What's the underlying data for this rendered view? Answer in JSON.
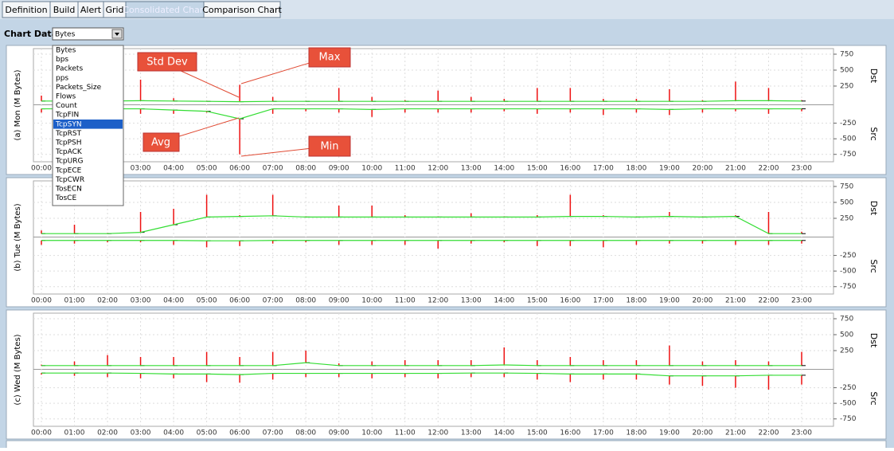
{
  "tabs": [
    "Definition",
    "Build",
    "Alert",
    "Grid",
    "Consolidated Chart",
    "Comparison Chart"
  ],
  "chart_data_label": "Chart Data:",
  "chart_data_select": "Bytes",
  "dropdown_options": [
    "Bytes",
    "bps",
    "Packets",
    "pps",
    "Packets_Size",
    "Flows",
    "Count",
    "TcpFIN",
    "TcpSYN",
    "TcpRST",
    "TcpPSH",
    "TcpACK",
    "TcpURG",
    "TcpECE",
    "TcpCWR",
    "TosECN",
    "TosCE"
  ],
  "annotations": {
    "std_dev": "Std Dev",
    "max": "Max",
    "avg": "Avg",
    "min": "Min"
  },
  "chart_data": [
    {
      "type": "errorline",
      "ylabel": "(a) Mon (M Bytes)",
      "dst_label": "Dst",
      "src_label": "Src",
      "x": [
        "00:00",
        "01:00",
        "02:00",
        "03:00",
        "04:00",
        "05:00",
        "06:00",
        "07:00",
        "08:00",
        "09:00",
        "10:00",
        "11:00",
        "12:00",
        "13:00",
        "14:00",
        "15:00",
        "16:00",
        "17:00",
        "18:00",
        "19:00",
        "20:00",
        "21:00",
        "22:00",
        "23:00"
      ],
      "ylim": [
        0,
        825
      ],
      "yticks": [
        750,
        500,
        250
      ],
      "y2lim": [
        -830,
        0
      ],
      "y2ticks": [
        -250,
        -500,
        -750
      ],
      "series": [
        {
          "name": "dst_avg",
          "color": "#33dd33",
          "values": [
            15,
            15,
            15,
            20,
            15,
            10,
            5,
            10,
            10,
            10,
            10,
            10,
            10,
            10,
            10,
            10,
            10,
            10,
            10,
            10,
            10,
            20,
            20,
            15
          ]
        },
        {
          "name": "dst_max",
          "color": "#ee1111",
          "values": [
            100,
            130,
            160,
            350,
            60,
            20,
            270,
            80,
            20,
            220,
            80,
            30,
            180,
            80,
            50,
            220,
            220,
            50,
            50,
            200,
            30,
            320,
            220,
            30
          ]
        },
        {
          "name": "src_avg",
          "color": "#33dd33",
          "axis": "y2",
          "values": [
            -20,
            -20,
            -20,
            -20,
            -40,
            -60,
            -180,
            -20,
            -20,
            -20,
            -30,
            -20,
            -20,
            -20,
            -20,
            -20,
            -20,
            -20,
            -20,
            -30,
            -20,
            -20,
            -20,
            -20
          ]
        },
        {
          "name": "src_min",
          "color": "#ee1111",
          "axis": "y2",
          "values": [
            -80,
            -120,
            -100,
            -100,
            -100,
            -80,
            -750,
            -100,
            -60,
            -80,
            -150,
            -80,
            -80,
            -80,
            -60,
            -100,
            -80,
            -120,
            -80,
            -120,
            -80,
            -60,
            -100,
            -60
          ]
        }
      ]
    },
    {
      "type": "errorline",
      "ylabel": "(b) Tue (M Bytes)",
      "dst_label": "Dst",
      "src_label": "Src",
      "x": [
        "00:00",
        "01:00",
        "02:00",
        "03:00",
        "04:00",
        "05:00",
        "06:00",
        "07:00",
        "08:00",
        "09:00",
        "10:00",
        "11:00",
        "12:00",
        "13:00",
        "14:00",
        "15:00",
        "16:00",
        "17:00",
        "18:00",
        "19:00",
        "20:00",
        "21:00",
        "22:00",
        "23:00"
      ],
      "ylim": [
        0,
        825
      ],
      "yticks": [
        750,
        500,
        250
      ],
      "y2lim": [
        -830,
        0
      ],
      "y2ticks": [
        -250,
        -500,
        -750
      ],
      "series": [
        {
          "name": "dst_avg",
          "color": "#33dd33",
          "values": [
            10,
            10,
            10,
            30,
            150,
            270,
            280,
            290,
            270,
            270,
            270,
            270,
            270,
            270,
            270,
            270,
            280,
            280,
            270,
            280,
            270,
            280,
            10,
            10
          ]
        },
        {
          "name": "dst_max",
          "color": "#ee1111",
          "values": [
            60,
            150,
            20,
            350,
            400,
            620,
            300,
            620,
            280,
            450,
            450,
            300,
            280,
            330,
            280,
            300,
            620,
            300,
            280,
            350,
            280,
            300,
            350,
            40
          ]
        },
        {
          "name": "src_avg",
          "color": "#33dd33",
          "axis": "y2",
          "values": [
            -10,
            -10,
            -10,
            -10,
            -10,
            -15,
            -15,
            -10,
            -10,
            -10,
            -10,
            -10,
            -10,
            -10,
            -10,
            -10,
            -10,
            -10,
            -10,
            -10,
            -10,
            -10,
            -10,
            -10
          ]
        },
        {
          "name": "src_min",
          "color": "#ee1111",
          "axis": "y2",
          "values": [
            -80,
            -60,
            -40,
            -40,
            -80,
            -120,
            -100,
            -60,
            -40,
            -80,
            -80,
            -80,
            -140,
            -60,
            -40,
            -100,
            -100,
            -120,
            -80,
            -60,
            -60,
            -80,
            -80,
            -60
          ]
        }
      ]
    },
    {
      "type": "errorline",
      "ylabel": "(c) Wed (M Bytes)",
      "dst_label": "Dst",
      "src_label": "Src",
      "x": [
        "00:00",
        "01:00",
        "02:00",
        "03:00",
        "04:00",
        "05:00",
        "06:00",
        "07:00",
        "08:00",
        "09:00",
        "10:00",
        "11:00",
        "12:00",
        "13:00",
        "14:00",
        "15:00",
        "16:00",
        "17:00",
        "18:00",
        "19:00",
        "20:00",
        "21:00",
        "22:00",
        "23:00"
      ],
      "ylim": [
        0,
        825
      ],
      "yticks": [
        750,
        500,
        250
      ],
      "y2lim": [
        -830,
        0
      ],
      "y2ticks": [
        -250,
        -500,
        -750
      ],
      "series": [
        {
          "name": "dst_avg",
          "color": "#33dd33",
          "values": [
            15,
            15,
            15,
            15,
            15,
            15,
            15,
            15,
            60,
            15,
            15,
            15,
            15,
            15,
            25,
            15,
            15,
            15,
            15,
            15,
            15,
            15,
            15,
            15
          ]
        },
        {
          "name": "dst_max",
          "color": "#ee1111",
          "values": [
            30,
            80,
            180,
            150,
            150,
            230,
            150,
            230,
            250,
            50,
            80,
            100,
            100,
            100,
            300,
            100,
            150,
            100,
            100,
            330,
            80,
            100,
            80,
            230
          ]
        },
        {
          "name": "src_avg",
          "color": "#33dd33",
          "axis": "y2",
          "values": [
            -15,
            -15,
            -15,
            -20,
            -30,
            -30,
            -40,
            -20,
            -20,
            -20,
            -20,
            -20,
            -20,
            -15,
            -15,
            -20,
            -30,
            -30,
            -30,
            -60,
            -60,
            -60,
            -50,
            -50
          ]
        },
        {
          "name": "src_min",
          "color": "#ee1111",
          "axis": "y2",
          "values": [
            -40,
            -60,
            -80,
            -100,
            -100,
            -160,
            -170,
            -120,
            -80,
            -80,
            -100,
            -80,
            -100,
            -80,
            -80,
            -120,
            -160,
            -120,
            -120,
            -200,
            -220,
            -250,
            -280,
            -200
          ]
        }
      ]
    }
  ]
}
